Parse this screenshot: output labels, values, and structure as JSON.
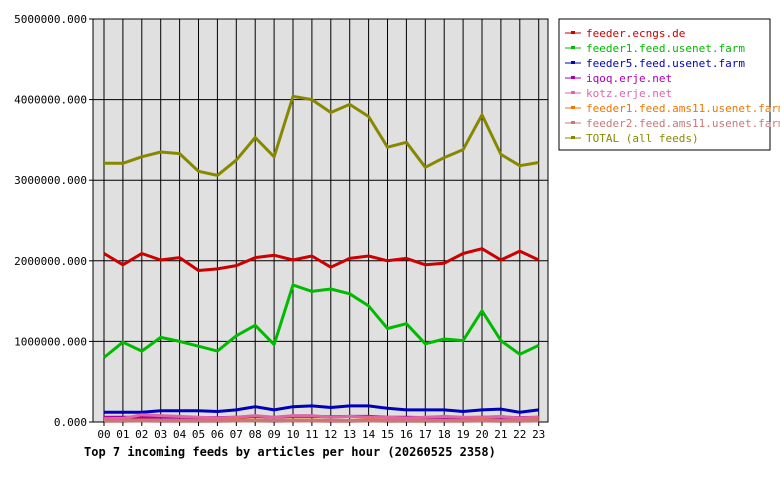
{
  "chart_data": {
    "type": "line",
    "title": "Top 7 incoming feeds by articles per hour (20260525 2358)",
    "xlabel": "",
    "ylabel": "",
    "categories": [
      "00",
      "01",
      "02",
      "03",
      "04",
      "05",
      "06",
      "07",
      "08",
      "09",
      "10",
      "11",
      "12",
      "13",
      "14",
      "15",
      "16",
      "17",
      "18",
      "19",
      "20",
      "21",
      "22",
      "23"
    ],
    "ylim": [
      0,
      5000000
    ],
    "yticks": [
      0,
      1000000,
      2000000,
      3000000,
      4000000,
      5000000
    ],
    "ytick_labels": [
      "0.000",
      "1000000.000",
      "2000000.000",
      "3000000.000",
      "4000000.000",
      "5000000.000"
    ],
    "grid": true,
    "legend_position": "top-right",
    "series": [
      {
        "name": "feeder.ecngs.de",
        "color": "#cc0000",
        "values": [
          2090000,
          1950000,
          2090000,
          2010000,
          2040000,
          1880000,
          1900000,
          1940000,
          2040000,
          2070000,
          2010000,
          2060000,
          1920000,
          2030000,
          2060000,
          2000000,
          2030000,
          1950000,
          1970000,
          2090000,
          2150000,
          2010000,
          2120000,
          2010000
        ]
      },
      {
        "name": "feeder1.feed.usenet.farm",
        "color": "#00bb00",
        "values": [
          800000,
          990000,
          880000,
          1050000,
          1000000,
          940000,
          880000,
          1070000,
          1200000,
          960000,
          1700000,
          1620000,
          1650000,
          1590000,
          1440000,
          1160000,
          1220000,
          970000,
          1030000,
          1010000,
          1380000,
          1010000,
          840000,
          950000
        ]
      },
      {
        "name": "feeder5.feed.usenet.farm",
        "color": "#0000bb",
        "values": [
          120000,
          120000,
          120000,
          140000,
          140000,
          140000,
          130000,
          150000,
          190000,
          150000,
          190000,
          200000,
          180000,
          200000,
          200000,
          170000,
          150000,
          150000,
          150000,
          130000,
          150000,
          160000,
          120000,
          150000
        ]
      },
      {
        "name": "iqoq.erje.net",
        "color": "#aa00aa",
        "values": [
          60000,
          60000,
          60000,
          60000,
          60000,
          55000,
          55000,
          60000,
          70000,
          60000,
          70000,
          70000,
          65000,
          70000,
          70000,
          60000,
          60000,
          55000,
          60000,
          55000,
          60000,
          60000,
          55000,
          60000
        ]
      },
      {
        "name": "kotz.erje.net",
        "color": "#dd66aa",
        "values": [
          40000,
          45000,
          90000,
          80000,
          70000,
          60000,
          50000,
          60000,
          80000,
          60000,
          80000,
          80000,
          60000,
          70000,
          60000,
          60000,
          50000,
          60000,
          70000,
          60000,
          60000,
          70000,
          50000,
          60000
        ]
      },
      {
        "name": "feeder1.feed.ams11.usenet.farm",
        "color": "#ee7700",
        "values": [
          20000,
          20000,
          25000,
          20000,
          20000,
          20000,
          20000,
          25000,
          25000,
          20000,
          25000,
          25000,
          20000,
          20000,
          25000,
          20000,
          20000,
          20000,
          20000,
          20000,
          25000,
          20000,
          20000,
          25000
        ]
      },
      {
        "name": "feeder2.feed.ams11.usenet.farm",
        "color": "#cc7777",
        "values": [
          10000,
          10000,
          12000,
          10000,
          10000,
          10000,
          10000,
          12000,
          12000,
          10000,
          12000,
          12000,
          10000,
          10000,
          12000,
          10000,
          10000,
          10000,
          10000,
          10000,
          12000,
          10000,
          10000,
          12000
        ]
      },
      {
        "name": "TOTAL (all feeds)",
        "color": "#888800",
        "values": [
          3210000,
          3210000,
          3290000,
          3350000,
          3330000,
          3110000,
          3060000,
          3250000,
          3530000,
          3290000,
          4040000,
          4000000,
          3840000,
          3940000,
          3790000,
          3410000,
          3470000,
          3160000,
          3280000,
          3380000,
          3810000,
          3320000,
          3180000,
          3220000
        ]
      }
    ]
  }
}
